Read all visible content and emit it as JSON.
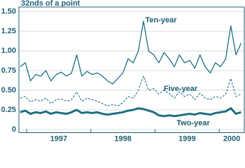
{
  "chart_data": {
    "type": "line",
    "y_label": "32nds of a point",
    "x": [
      1996.9,
      1996.98,
      1997.06,
      1997.14,
      1997.22,
      1997.3,
      1997.38,
      1997.46,
      1997.54,
      1997.62,
      1997.7,
      1997.78,
      1997.86,
      1997.94,
      1998.02,
      1998.1,
      1998.18,
      1998.26,
      1998.34,
      1998.42,
      1998.5,
      1998.58,
      1998.66,
      1998.74,
      1998.82,
      1998.9,
      1998.98,
      1999.06,
      1999.14,
      1999.22,
      1999.3,
      1999.38,
      1999.46,
      1999.54,
      1999.62,
      1999.7,
      1999.78,
      1999.86,
      1999.94,
      2000.02,
      2000.1,
      2000.18,
      2000.26,
      2000.34
    ],
    "series": [
      {
        "name": "Ten-year",
        "color": "#1d6f82",
        "style": "solid",
        "values": [
          0.8,
          0.85,
          0.62,
          0.7,
          0.68,
          0.75,
          0.62,
          0.7,
          0.73,
          0.68,
          0.72,
          0.95,
          0.68,
          0.74,
          0.7,
          0.72,
          0.68,
          0.62,
          0.58,
          0.65,
          0.72,
          0.9,
          0.85,
          1.0,
          1.38,
          1.0,
          0.95,
          0.85,
          0.98,
          0.9,
          0.8,
          0.95,
          0.85,
          0.88,
          0.78,
          0.95,
          0.8,
          0.72,
          0.85,
          0.8,
          0.9,
          1.32,
          0.95,
          1.1
        ]
      },
      {
        "name": "Five-year",
        "color": "#1d6f82",
        "style": "dashed",
        "values": [
          0.4,
          0.42,
          0.35,
          0.38,
          0.36,
          0.4,
          0.33,
          0.38,
          0.39,
          0.36,
          0.38,
          0.48,
          0.36,
          0.4,
          0.38,
          0.36,
          0.33,
          0.3,
          0.32,
          0.3,
          0.34,
          0.42,
          0.4,
          0.5,
          0.68,
          0.5,
          0.52,
          0.45,
          0.5,
          0.46,
          0.4,
          0.48,
          0.42,
          0.45,
          0.38,
          0.46,
          0.4,
          0.38,
          0.42,
          0.4,
          0.45,
          0.65,
          0.42,
          0.45
        ]
      },
      {
        "name": "Two-year",
        "color": "#1d6f82",
        "style": "bold",
        "values": [
          0.22,
          0.24,
          0.2,
          0.22,
          0.21,
          0.23,
          0.2,
          0.22,
          0.21,
          0.2,
          0.22,
          0.25,
          0.21,
          0.22,
          0.21,
          0.22,
          0.2,
          0.19,
          0.2,
          0.21,
          0.22,
          0.24,
          0.25,
          0.27,
          0.26,
          0.24,
          0.22,
          0.18,
          0.17,
          0.18,
          0.17,
          0.18,
          0.19,
          0.2,
          0.19,
          0.21,
          0.2,
          0.19,
          0.21,
          0.22,
          0.23,
          0.27,
          0.2,
          0.22
        ]
      }
    ],
    "xlim": [
      1996.88,
      2000.39
    ],
    "xticks": [
      1997,
      1998,
      1999,
      2000
    ],
    "ylim": [
      -0.04,
      1.56
    ],
    "yticks": [
      0,
      {
        "value": 0.25,
        "label": "0.25"
      },
      {
        "value": 0.5,
        "label": "0.50"
      },
      {
        "value": 0.75,
        "label": "0.75"
      },
      {
        "value": 1,
        "label": "1.00"
      },
      {
        "value": 1.25,
        "label": "1.25"
      },
      {
        "value": 1.5,
        "label": "1.50"
      }
    ],
    "grid": true
  }
}
